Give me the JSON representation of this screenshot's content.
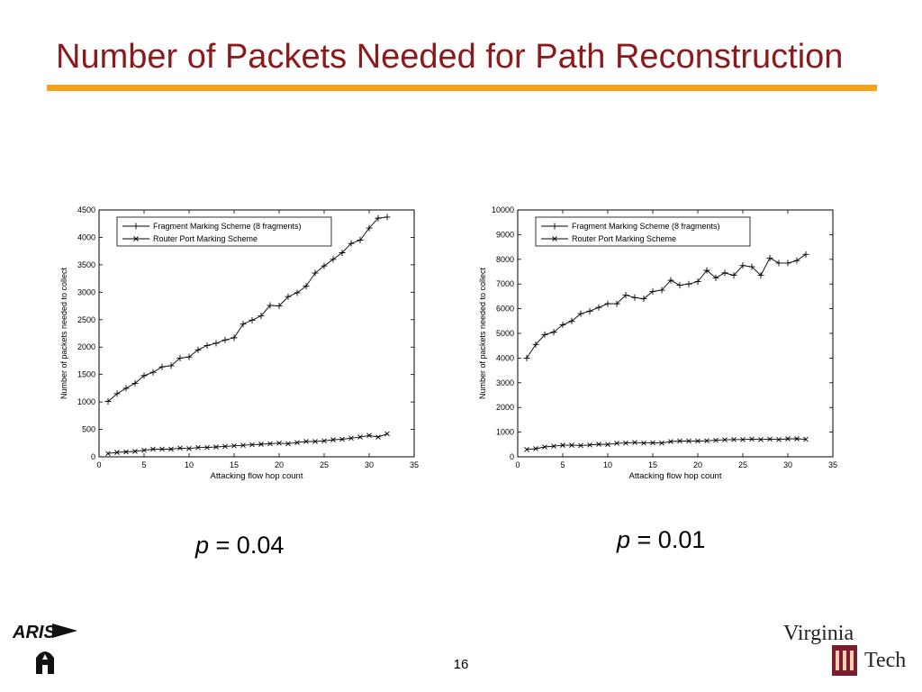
{
  "slide": {
    "title": "Number of Packets Needed for Path Reconstruction",
    "page_number": "16",
    "accent_color": "#f4a21b",
    "title_color": "#8b1a1a"
  },
  "logos": {
    "left": {
      "text": "ARIS",
      "icon": "aris-logo"
    },
    "right": {
      "line1": "Virginia",
      "line2": "Tech",
      "icon": "virginia-tech-logo"
    }
  },
  "p_labels": [
    {
      "var": "p",
      "rest": " = 0.04"
    },
    {
      "var": "p",
      "rest": " = 0.01"
    }
  ],
  "chart_data": [
    {
      "type": "line",
      "xlabel": "Attacking flow hop count",
      "ylabel": "Number of packets needed to collect",
      "xlim": [
        0,
        35
      ],
      "ylim": [
        0,
        4500
      ],
      "xticks": [
        0,
        5,
        10,
        15,
        20,
        25,
        30,
        35
      ],
      "yticks": [
        0,
        500,
        1000,
        1500,
        2000,
        2500,
        3000,
        3500,
        4000,
        4500
      ],
      "grid": false,
      "legend_position": "top-left",
      "x": [
        1,
        2,
        3,
        4,
        5,
        6,
        7,
        8,
        9,
        10,
        11,
        12,
        13,
        14,
        15,
        16,
        17,
        18,
        19,
        20,
        21,
        22,
        23,
        24,
        25,
        26,
        27,
        28,
        29,
        30,
        31,
        32
      ],
      "series": [
        {
          "name": "Fragment Marking Scheme (8 fragments)",
          "marker": "+",
          "values": [
            1010,
            1150,
            1250,
            1340,
            1480,
            1540,
            1640,
            1660,
            1800,
            1820,
            1950,
            2030,
            2070,
            2130,
            2170,
            2420,
            2490,
            2570,
            2760,
            2750,
            2920,
            2990,
            3110,
            3350,
            3480,
            3600,
            3720,
            3890,
            3950,
            4170,
            4350,
            4370
          ]
        },
        {
          "name": "Router Port Marking Scheme",
          "marker": "x",
          "values": [
            60,
            80,
            90,
            100,
            120,
            140,
            140,
            140,
            160,
            150,
            170,
            170,
            180,
            190,
            200,
            210,
            220,
            230,
            240,
            250,
            240,
            260,
            280,
            280,
            290,
            310,
            320,
            340,
            360,
            390,
            360,
            420
          ]
        }
      ]
    },
    {
      "type": "line",
      "xlabel": "Attacking flow hop count",
      "ylabel": "Number of packets needed to collect",
      "xlim": [
        0,
        35
      ],
      "ylim": [
        0,
        10000
      ],
      "xticks": [
        0,
        5,
        10,
        15,
        20,
        25,
        30,
        35
      ],
      "yticks": [
        0,
        1000,
        2000,
        3000,
        4000,
        5000,
        6000,
        7000,
        8000,
        9000,
        10000
      ],
      "grid": false,
      "legend_position": "top-left",
      "x": [
        1,
        2,
        3,
        4,
        5,
        6,
        7,
        8,
        9,
        10,
        11,
        12,
        13,
        14,
        15,
        16,
        17,
        18,
        19,
        20,
        21,
        22,
        23,
        24,
        25,
        26,
        27,
        28,
        29,
        30,
        31,
        32
      ],
      "series": [
        {
          "name": "Fragment Marking Scheme (8 fragments)",
          "marker": "+",
          "values": [
            4000,
            4550,
            4950,
            5050,
            5350,
            5500,
            5800,
            5900,
            6050,
            6200,
            6200,
            6550,
            6450,
            6400,
            6700,
            6750,
            7150,
            6950,
            7000,
            7100,
            7550,
            7250,
            7450,
            7350,
            7750,
            7700,
            7350,
            8050,
            7850,
            7850,
            7950,
            8200
          ]
        },
        {
          "name": "Router Port Marking Scheme",
          "marker": "x",
          "values": [
            300,
            330,
            400,
            430,
            470,
            470,
            460,
            480,
            510,
            500,
            550,
            560,
            580,
            560,
            570,
            560,
            620,
            640,
            640,
            640,
            650,
            670,
            690,
            700,
            700,
            720,
            700,
            720,
            700,
            730,
            730,
            710
          ]
        }
      ]
    }
  ]
}
